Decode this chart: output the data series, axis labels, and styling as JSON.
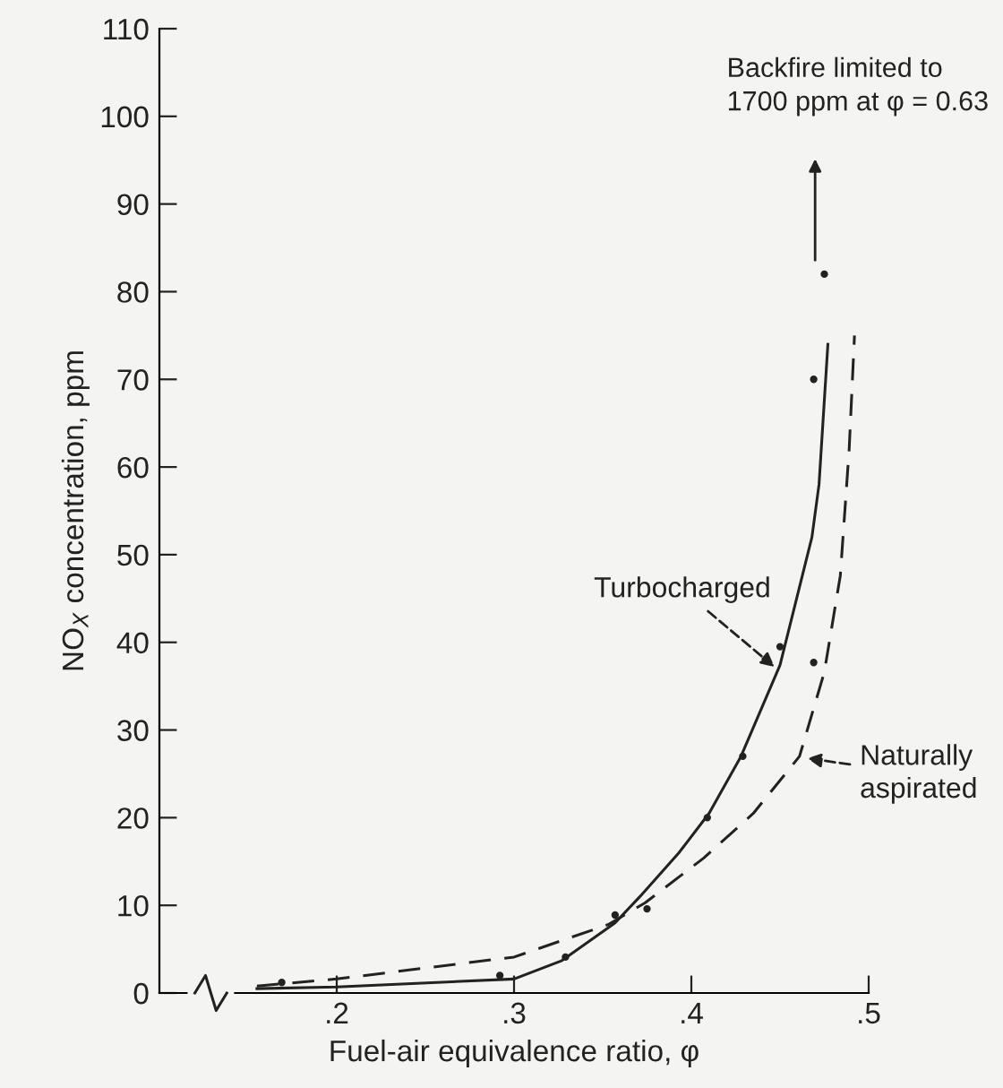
{
  "chart_data": {
    "type": "line",
    "xlabel": "Fuel-air equivalence ratio, φ",
    "ylabel": "NO$_{X}$ concentration, ppm",
    "xlim": [
      0.1,
      0.5
    ],
    "xticks": [
      {
        "value": 0.2,
        "label": ".2"
      },
      {
        "value": 0.3,
        "label": ".3"
      },
      {
        "value": 0.4,
        "label": ".4"
      },
      {
        "value": 0.5,
        "label": ".5"
      }
    ],
    "ylim": [
      0,
      110
    ],
    "yticks": [
      0,
      10,
      20,
      30,
      40,
      50,
      60,
      70,
      80,
      90,
      100,
      110
    ],
    "grid": false,
    "legend": false,
    "series": [
      {
        "color": "#222222",
        "line_style": "solid",
        "marker": "none",
        "x": [
          0.155,
          0.2,
          0.3,
          0.327,
          0.357,
          0.371,
          0.393,
          0.41,
          0.428,
          0.45,
          0.468,
          0.472,
          0.477
        ],
        "values": [
          0.5,
          0.7,
          1.6,
          3.7,
          8,
          11,
          16,
          20.5,
          27,
          37.4,
          52,
          58,
          74
        ]
      },
      {
        "color": "#222222",
        "line_style": "dashed",
        "marker": "none",
        "x": [
          0.155,
          0.2,
          0.3,
          0.353,
          0.374,
          0.407,
          0.435,
          0.461,
          0.475,
          0.484,
          0.489,
          0.492
        ],
        "values": [
          0.8,
          1.6,
          4.1,
          7.8,
          10.3,
          15.4,
          20.5,
          27,
          36.6,
          47.6,
          62,
          75
        ]
      },
      {
        "type": "scatter",
        "color": "#222222",
        "marker": "circle",
        "x": [
          0.169,
          0.292,
          0.329,
          0.357,
          0.375,
          0.409,
          0.429,
          0.45,
          0.469,
          0.469,
          0.475
        ],
        "values": [
          1.2,
          2,
          4.1,
          8.9,
          9.6,
          20,
          27,
          39.5,
          37.7,
          70,
          82
        ]
      }
    ],
    "annotations": [
      "Backfire limited to\n1700 ppm at φ = 0.63",
      {
        "text": "Turbocharged",
        "x": 0.448,
        "y": 37
      },
      {
        "text": "Naturally\naspirated",
        "x": 0.464,
        "y": 26.8
      }
    ]
  }
}
